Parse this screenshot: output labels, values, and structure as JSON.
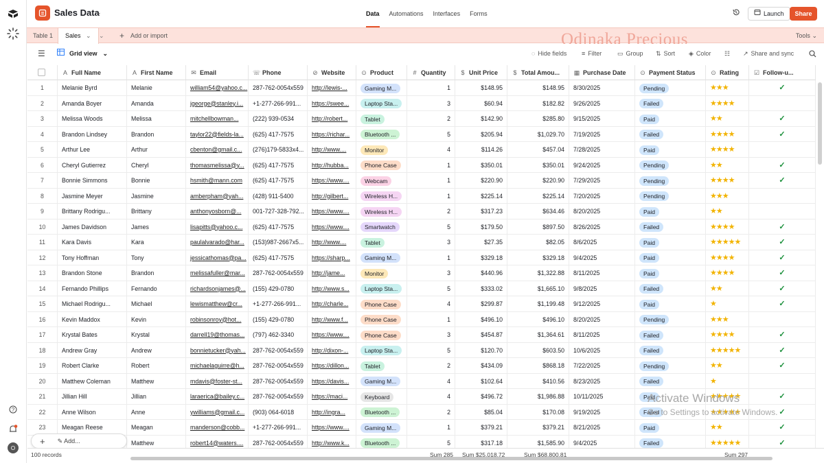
{
  "app": {
    "base_name": "Sales Data"
  },
  "top_tabs": [
    "Data",
    "Automations",
    "Interfaces",
    "Forms"
  ],
  "top_actions": {
    "launch": "Launch",
    "share": "Share"
  },
  "table_tabs": {
    "table1": "Table 1",
    "sales": "Sales",
    "add_import": "Add or import",
    "tools": "Tools"
  },
  "watermark": "Odinaka Precious",
  "viewbar": {
    "view": "Grid view",
    "hide_fields": "Hide fields",
    "filter": "Filter",
    "group": "Group",
    "sort": "Sort",
    "color": "Color",
    "share_sync": "Share and sync"
  },
  "columns": [
    "Full Name",
    "First Name",
    "Email",
    "Phone",
    "Website",
    "Product",
    "Quantity",
    "Unit Price",
    "Total Amou...",
    "Purchase Date",
    "Payment Status",
    "Rating",
    "Follow-u..."
  ],
  "rows": [
    {
      "n": "1",
      "full": "Melanie Byrd",
      "first": "Melanie",
      "email": "william54@yahoo.c...",
      "phone": "287-762-0054x559",
      "web": "http://lewis-...",
      "product": "Gaming M...",
      "qty": "1",
      "unit": "$148.95",
      "total": "$148.95",
      "date": "8/30/2025",
      "status": "Pending",
      "rating": 3,
      "follow": true
    },
    {
      "n": "2",
      "full": "Amanda Boyer",
      "first": "Amanda",
      "email": "jgeorge@stanley.i...",
      "phone": "+1-277-266-991...",
      "web": "https://swee...",
      "product": "Laptop Sta...",
      "qty": "3",
      "unit": "$60.94",
      "total": "$182.82",
      "date": "9/26/2025",
      "status": "Failed",
      "rating": 4,
      "follow": false
    },
    {
      "n": "3",
      "full": "Melissa Woods",
      "first": "Melissa",
      "email": "mitchellbowman...",
      "phone": "(222) 939-0534",
      "web": "http://robert...",
      "product": "Tablet",
      "qty": "2",
      "unit": "$142.90",
      "total": "$285.80",
      "date": "9/15/2025",
      "status": "Paid",
      "rating": 2,
      "follow": true
    },
    {
      "n": "4",
      "full": "Brandon Lindsey",
      "first": "Brandon",
      "email": "taylor22@fields-la...",
      "phone": "(625) 417-7575",
      "web": "https://richar...",
      "product": "Bluetooth ...",
      "qty": "5",
      "unit": "$205.94",
      "total": "$1,029.70",
      "date": "7/19/2025",
      "status": "Failed",
      "rating": 4,
      "follow": true
    },
    {
      "n": "5",
      "full": "Arthur Lee",
      "first": "Arthur",
      "email": "cbenton@gmail.c...",
      "phone": "(276)179-5833x4...",
      "web": "http://www....",
      "product": "Monitor",
      "qty": "4",
      "unit": "$114.26",
      "total": "$457.04",
      "date": "7/28/2025",
      "status": "Paid",
      "rating": 4,
      "follow": false
    },
    {
      "n": "6",
      "full": "Cheryl Gutierrez",
      "first": "Cheryl",
      "email": "thomasmelissa@y...",
      "phone": "(625) 417-7575",
      "web": "http://hubba...",
      "product": "Phone Case",
      "qty": "1",
      "unit": "$350.01",
      "total": "$350.01",
      "date": "9/24/2025",
      "status": "Pending",
      "rating": 2,
      "follow": true
    },
    {
      "n": "7",
      "full": "Bonnie Simmons",
      "first": "Bonnie",
      "email": "hsmith@mann.com",
      "phone": "(625) 417-7575",
      "web": "https://www....",
      "product": "Webcam",
      "qty": "1",
      "unit": "$220.90",
      "total": "$220.90",
      "date": "7/29/2025",
      "status": "Pending",
      "rating": 4,
      "follow": true
    },
    {
      "n": "8",
      "full": "Jasmine Meyer",
      "first": "Jasmine",
      "email": "amberpham@yah...",
      "phone": "(428) 911-5400",
      "web": "http://gilbert...",
      "product": "Wireless H...",
      "qty": "1",
      "unit": "$225.14",
      "total": "$225.14",
      "date": "7/20/2025",
      "status": "Pending",
      "rating": 3,
      "follow": false
    },
    {
      "n": "9",
      "full": "Brittany Rodrigu...",
      "first": "Brittany",
      "email": "anthonyosborn@...",
      "phone": "001-727-328-792...",
      "web": "https://www....",
      "product": "Wireless H...",
      "qty": "2",
      "unit": "$317.23",
      "total": "$634.46",
      "date": "8/20/2025",
      "status": "Paid",
      "rating": 2,
      "follow": false
    },
    {
      "n": "10",
      "full": "James Davidson",
      "first": "James",
      "email": "lisapitts@yahoo.c...",
      "phone": "(625) 417-7575",
      "web": "https://www....",
      "product": "Smartwatch",
      "qty": "5",
      "unit": "$179.50",
      "total": "$897.50",
      "date": "8/26/2025",
      "status": "Failed",
      "rating": 4,
      "follow": true
    },
    {
      "n": "11",
      "full": "Kara Davis",
      "first": "Kara",
      "email": "paulalvarado@har...",
      "phone": "(153)987-2667x5...",
      "web": "http://www....",
      "product": "Tablet",
      "qty": "3",
      "unit": "$27.35",
      "total": "$82.05",
      "date": "8/6/2025",
      "status": "Paid",
      "rating": 5,
      "follow": true
    },
    {
      "n": "12",
      "full": "Tony Hoffman",
      "first": "Tony",
      "email": "jessicathomas@pa...",
      "phone": "(625) 417-7575",
      "web": "https://sharp...",
      "product": "Gaming M...",
      "qty": "1",
      "unit": "$329.18",
      "total": "$329.18",
      "date": "9/4/2025",
      "status": "Paid",
      "rating": 4,
      "follow": true
    },
    {
      "n": "13",
      "full": "Brandon Stone",
      "first": "Brandon",
      "email": "melissafuller@mar...",
      "phone": "287-762-0054x559",
      "web": "http://jame...",
      "product": "Monitor",
      "qty": "3",
      "unit": "$440.96",
      "total": "$1,322.88",
      "date": "8/11/2025",
      "status": "Paid",
      "rating": 4,
      "follow": true
    },
    {
      "n": "14",
      "full": "Fernando Phillips",
      "first": "Fernando",
      "email": "richardsonjames@...",
      "phone": "(155) 429-0780",
      "web": "http://www.s...",
      "product": "Laptop Sta...",
      "qty": "5",
      "unit": "$333.02",
      "total": "$1,665.10",
      "date": "9/8/2025",
      "status": "Failed",
      "rating": 2,
      "follow": true
    },
    {
      "n": "15",
      "full": "Michael Rodrigu...",
      "first": "Michael",
      "email": "lewismatthew@cr...",
      "phone": "+1-277-266-991...",
      "web": "http://charle...",
      "product": "Phone Case",
      "qty": "4",
      "unit": "$299.87",
      "total": "$1,199.48",
      "date": "9/12/2025",
      "status": "Paid",
      "rating": 1,
      "follow": true
    },
    {
      "n": "16",
      "full": "Kevin Maddox",
      "first": "Kevin",
      "email": "robinsonroy@hot...",
      "phone": "(155) 429-0780",
      "web": "http://www.f...",
      "product": "Phone Case",
      "qty": "1",
      "unit": "$496.10",
      "total": "$496.10",
      "date": "8/20/2025",
      "status": "Pending",
      "rating": 3,
      "follow": false
    },
    {
      "n": "17",
      "full": "Krystal Bates",
      "first": "Krystal",
      "email": "darrell19@thomas...",
      "phone": "(797) 462-3340",
      "web": "https://www....",
      "product": "Phone Case",
      "qty": "3",
      "unit": "$454.87",
      "total": "$1,364.61",
      "date": "8/11/2025",
      "status": "Failed",
      "rating": 4,
      "follow": true
    },
    {
      "n": "18",
      "full": "Andrew Gray",
      "first": "Andrew",
      "email": "bonnietucker@yah...",
      "phone": "287-762-0054x559",
      "web": "http://dixon-...",
      "product": "Laptop Sta...",
      "qty": "5",
      "unit": "$120.70",
      "total": "$603.50",
      "date": "10/6/2025",
      "status": "Failed",
      "rating": 5,
      "follow": true
    },
    {
      "n": "19",
      "full": "Robert Clarke",
      "first": "Robert",
      "email": "michaelaguirre@h...",
      "phone": "287-762-0054x559",
      "web": "https://dillon...",
      "product": "Tablet",
      "qty": "2",
      "unit": "$434.09",
      "total": "$868.18",
      "date": "7/22/2025",
      "status": "Pending",
      "rating": 2,
      "follow": true
    },
    {
      "n": "20",
      "full": "Matthew Coleman",
      "first": "Matthew",
      "email": "mdavis@foster-st...",
      "phone": "287-762-0054x559",
      "web": "https://davis...",
      "product": "Gaming M...",
      "qty": "4",
      "unit": "$102.64",
      "total": "$410.56",
      "date": "8/23/2025",
      "status": "Failed",
      "rating": 1,
      "follow": false
    },
    {
      "n": "21",
      "full": "Jillian Hill",
      "first": "Jillian",
      "email": "laraerica@bailey.c...",
      "phone": "287-762-0054x559",
      "web": "https://maci...",
      "product": "Keyboard",
      "qty": "4",
      "unit": "$496.72",
      "total": "$1,986.88",
      "date": "10/11/2025",
      "status": "Paid",
      "rating": 5,
      "follow": true
    },
    {
      "n": "22",
      "full": "Anne Wilson",
      "first": "Anne",
      "email": "ywilliams@gmail.c...",
      "phone": "(903) 064-6018",
      "web": "http://ingra...",
      "product": "Bluetooth ...",
      "qty": "2",
      "unit": "$85.04",
      "total": "$170.08",
      "date": "9/19/2025",
      "status": "Failed",
      "rating": 5,
      "follow": true
    },
    {
      "n": "23",
      "full": "Meagan Reese",
      "first": "Meagan",
      "email": "manderson@cobb...",
      "phone": "+1-277-266-991...",
      "web": "https://www....",
      "product": "Gaming M...",
      "qty": "1",
      "unit": "$379.21",
      "total": "$379.21",
      "date": "8/21/2025",
      "status": "Paid",
      "rating": 2,
      "follow": true
    },
    {
      "n": "24",
      "full": "w Donald...",
      "first": "Matthew",
      "email": "robert14@waters....",
      "phone": "287-762-0054x559",
      "web": "http://www.k...",
      "product": "Bluetooth ...",
      "qty": "5",
      "unit": "$317.18",
      "total": "$1,585.90",
      "date": "9/4/2025",
      "status": "Failed",
      "rating": 5,
      "follow": true
    }
  ],
  "footer": {
    "records": "100 records",
    "sum_qty": "Sum 285",
    "sum_unit": "Sum $25,018.72",
    "sum_total": "Sum $68,800.81",
    "sum_rating": "Sum 297"
  },
  "add_bar": {
    "add_label": "Add..."
  },
  "os_overlay": {
    "line1": "Activate Windows",
    "line2": "Go to Settings to activate Windows."
  },
  "colors": {
    "accent": "#e5542b",
    "tab_bar_bg": "#fde2dc",
    "star": "#f2b300",
    "check": "#1a8f3a",
    "status": {
      "Pending": "#cfe5fb",
      "Failed": "#cfe5fb",
      "Paid": "#cfe5fb"
    },
    "product": {
      "Gaming M...": "#d3e2fb",
      "Laptop Sta...": "#c8f0ef",
      "Tablet": "#c9f2df",
      "Bluetooth ...": "#cdf3d4",
      "Monitor": "#fde8b8",
      "Phone Case": "#fddcc8",
      "Webcam": "#fbd2e5",
      "Wireless H...": "#f5d5f3",
      "Smartwatch": "#e5d7fb",
      "Keyboard": "#e6e6e6"
    }
  }
}
